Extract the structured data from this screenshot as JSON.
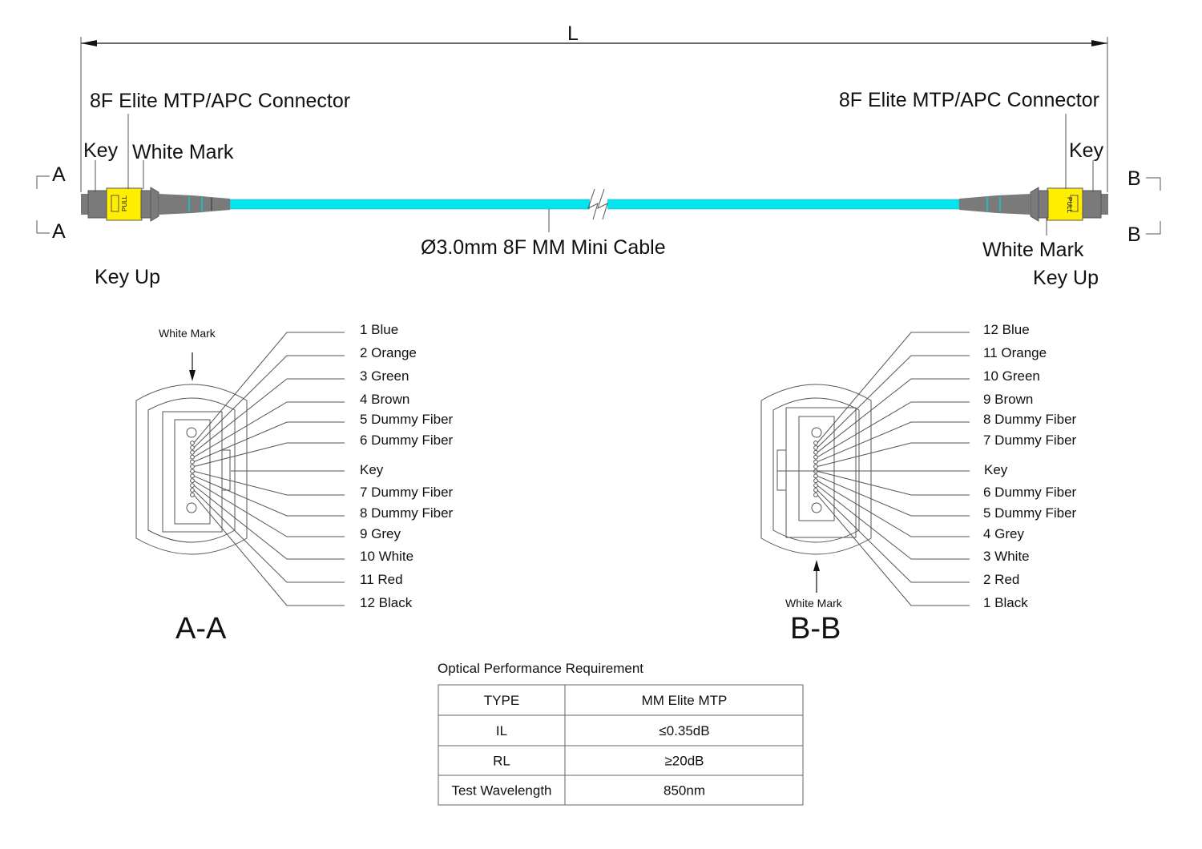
{
  "dimension_label": "L",
  "connector_left": {
    "title": "8F Elite MTP/APC Connector",
    "key": "Key",
    "white_mark": "White Mark",
    "section_marks": [
      "A",
      "A"
    ],
    "key_up": "Key Up"
  },
  "connector_right": {
    "title": "8F Elite MTP/APC Connector",
    "key": "Key",
    "white_mark": "White Mark",
    "section_marks": [
      "B",
      "B"
    ],
    "key_up": "Key  Up"
  },
  "connector_pull_text": "PULL",
  "cable_label": "Ø3.0mm 8F MM Mini Cable",
  "colors": {
    "cable": "#00e5ee",
    "boot": "#7a7a7a",
    "housing": "#ffee00"
  },
  "section_aa": {
    "title": "A-A",
    "white_mark": "White Mark",
    "key": "Key",
    "fibers": [
      "1 Blue",
      "2 Orange",
      "3 Green",
      "4 Brown",
      "5 Dummy Fiber",
      "6 Dummy Fiber",
      "7 Dummy Fiber",
      "8 Dummy Fiber",
      "9 Grey",
      "10 White",
      "11 Red",
      "12 Black"
    ]
  },
  "section_bb": {
    "title": "B-B",
    "white_mark": "White Mark",
    "key": "Key",
    "fibers": [
      "12 Blue",
      "11 Orange",
      "10 Green",
      "9 Brown",
      "8 Dummy Fiber",
      "7 Dummy Fiber",
      "6 Dummy Fiber",
      "5 Dummy Fiber",
      "4 Grey",
      "3 White",
      "2 Red",
      "1 Black"
    ]
  },
  "table": {
    "title": "Optical Performance Requirement",
    "rows": [
      [
        "TYPE",
        "MM Elite MTP"
      ],
      [
        "IL",
        "≤0.35dB"
      ],
      [
        "RL",
        "≥20dB"
      ],
      [
        "Test Wavelength",
        "850nm"
      ]
    ]
  }
}
